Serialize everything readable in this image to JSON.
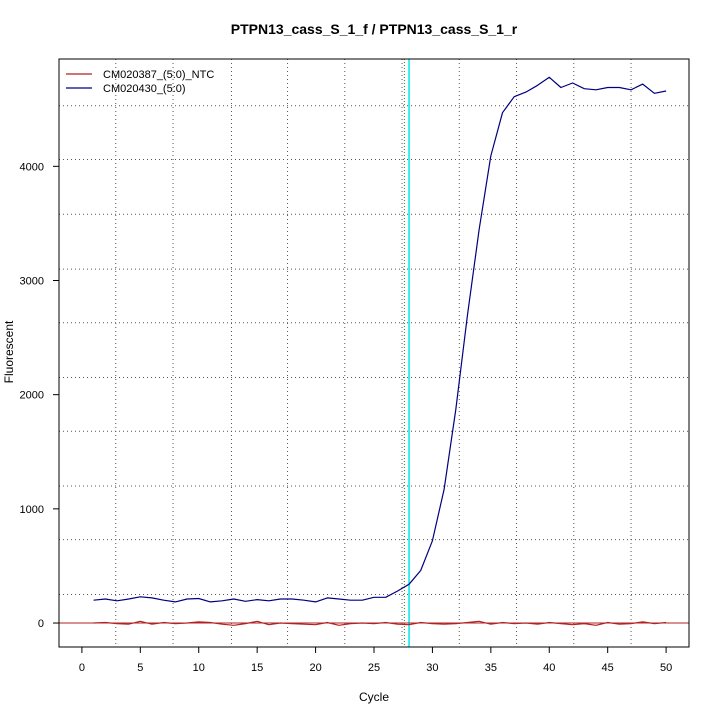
{
  "chart_data": {
    "type": "line",
    "title": "PTPN13_cass_S_1_f / PTPN13_cass_S_1_r",
    "xlabel": "Cycle",
    "ylabel": "Fluorescent",
    "xlim": [
      -1.96,
      51.96
    ],
    "ylim": [
      -210,
      4940
    ],
    "xticks": [
      0,
      5,
      10,
      15,
      20,
      25,
      30,
      35,
      40,
      45,
      50
    ],
    "yticks": [
      0,
      1000,
      2000,
      3000,
      4000
    ],
    "grid": true,
    "grid_x": [
      2.9,
      7.8,
      12.8,
      17.6,
      22.5,
      27.4,
      32.3,
      37.2,
      42.1,
      47.0
    ],
    "grid_y": [
      250,
      730,
      1200,
      1680,
      2150,
      2630,
      3100,
      3580,
      4060,
      4530
    ],
    "threshold_x": 28,
    "threshold_line_x": 27.6,
    "baseline_y": 0,
    "legend_position": "top-left",
    "series": [
      {
        "name": "CM020387_(5:0)_NTC",
        "color": "#b22222",
        "x": [
          1,
          2,
          3,
          4,
          5,
          6,
          7,
          8,
          9,
          10,
          11,
          12,
          13,
          14,
          15,
          16,
          17,
          18,
          19,
          20,
          21,
          22,
          23,
          24,
          25,
          26,
          27,
          28,
          29,
          30,
          31,
          32,
          33,
          34,
          35,
          36,
          37,
          38,
          39,
          40,
          41,
          42,
          43,
          44,
          45,
          46,
          47,
          48,
          49,
          50
        ],
        "y": [
          0,
          5,
          -5,
          -10,
          15,
          -10,
          5,
          -5,
          0,
          10,
          5,
          -10,
          -20,
          -5,
          15,
          -15,
          0,
          -5,
          -10,
          -15,
          5,
          -20,
          -5,
          0,
          -5,
          5,
          -10,
          -15,
          5,
          -5,
          -10,
          -5,
          5,
          15,
          -10,
          5,
          -5,
          0,
          -10,
          5,
          -5,
          -15,
          -5,
          -20,
          5,
          -10,
          -5,
          10,
          -5,
          5
        ]
      },
      {
        "name": "CM020430_(5:0)",
        "color": "#000080",
        "x": [
          1,
          2,
          3,
          4,
          5,
          6,
          7,
          8,
          9,
          10,
          11,
          12,
          13,
          14,
          15,
          16,
          17,
          18,
          19,
          20,
          21,
          22,
          23,
          24,
          25,
          26,
          27,
          28,
          29,
          30,
          31,
          32,
          33,
          34,
          35,
          36,
          37,
          38,
          39,
          40,
          41,
          42,
          43,
          44,
          45,
          46,
          47,
          48,
          49,
          50
        ],
        "y": [
          200,
          210,
          195,
          210,
          230,
          220,
          200,
          185,
          210,
          215,
          185,
          195,
          210,
          190,
          205,
          195,
          210,
          210,
          200,
          185,
          220,
          210,
          200,
          200,
          225,
          225,
          280,
          340,
          460,
          720,
          1170,
          1870,
          2700,
          3450,
          4090,
          4470,
          4610,
          4650,
          4710,
          4780,
          4690,
          4730,
          4680,
          4670,
          4690,
          4690,
          4670,
          4720,
          4640,
          4660
        ]
      }
    ]
  }
}
